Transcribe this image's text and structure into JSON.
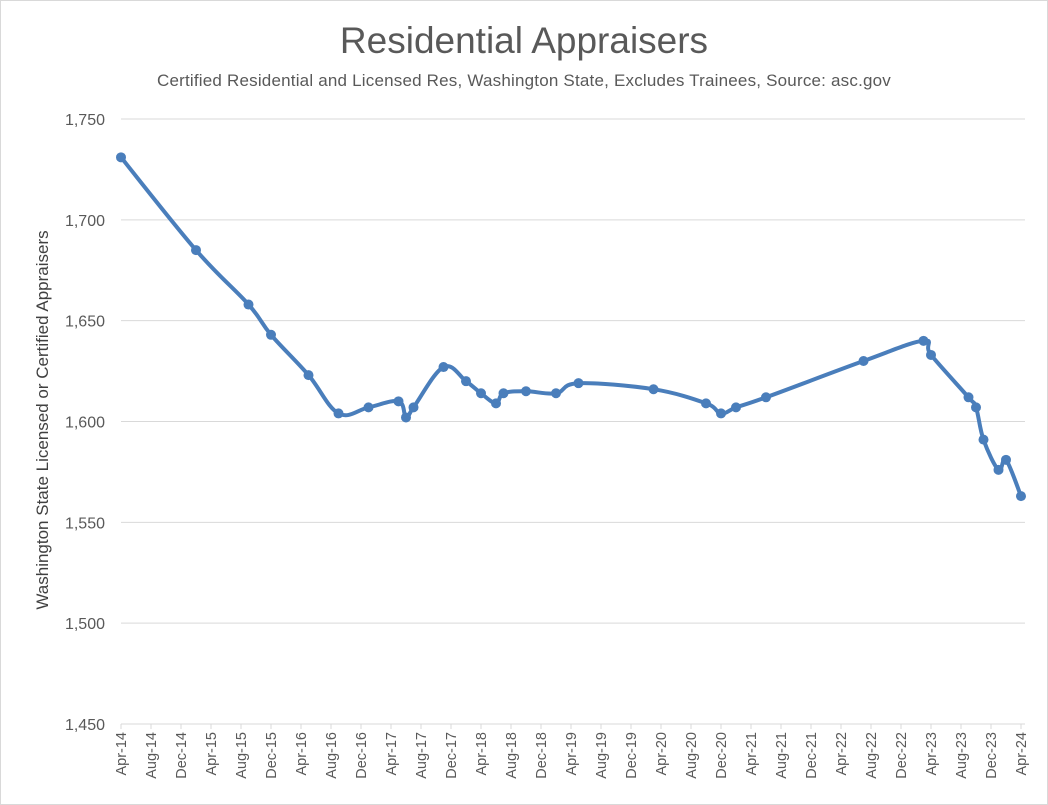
{
  "chart_data": {
    "type": "line",
    "title": "Residential Appraisers",
    "subtitle": "Certified Residential and Licensed Res, Washington State, Excludes Trainees, Source: asc.gov",
    "xlabel": "",
    "ylabel": "Washington State Licensed or Certified  Appraisers",
    "ylim": [
      1450,
      1750
    ],
    "yticks": [
      1450,
      1500,
      1550,
      1600,
      1650,
      1700,
      1750
    ],
    "ytick_labels": [
      "1,450",
      "1,500",
      "1,550",
      "1,600",
      "1,650",
      "1,700",
      "1,750"
    ],
    "xlim": [
      0,
      120
    ],
    "xticks": [
      0,
      4,
      8,
      12,
      16,
      20,
      24,
      28,
      32,
      36,
      40,
      44,
      48,
      52,
      56,
      60,
      64,
      68,
      72,
      76,
      80,
      84,
      88,
      92,
      96,
      100,
      104,
      108,
      112,
      116,
      120
    ],
    "xtick_labels": [
      "Apr-14",
      "Aug-14",
      "Dec-14",
      "Apr-15",
      "Aug-15",
      "Dec-15",
      "Apr-16",
      "Aug-16",
      "Dec-16",
      "Apr-17",
      "Aug-17",
      "Dec-17",
      "Apr-18",
      "Aug-18",
      "Dec-18",
      "Apr-19",
      "Aug-19",
      "Dec-19",
      "Apr-20",
      "Aug-20",
      "Dec-20",
      "Apr-21",
      "Aug-21",
      "Dec-21",
      "Apr-22",
      "Aug-22",
      "Dec-22",
      "Apr-23",
      "Aug-23",
      "Dec-23",
      "Apr-24"
    ],
    "grid": true,
    "legend": "none",
    "series": [
      {
        "name": "Residential Appraisers",
        "color": "#4a7ebb",
        "x": [
          0,
          10,
          17,
          20,
          25,
          29,
          33,
          37,
          38,
          39,
          43,
          46,
          48,
          50,
          51,
          54,
          58,
          61,
          71,
          78,
          80,
          82,
          86,
          99,
          107,
          108,
          113,
          114,
          115,
          117,
          118,
          120
        ],
        "values": [
          1731,
          1685,
          1658,
          1643,
          1623,
          1604,
          1607,
          1610,
          1602,
          1607,
          1627,
          1620,
          1614,
          1609,
          1614,
          1615,
          1614,
          1619,
          1616,
          1609,
          1604,
          1607,
          1612,
          1630,
          1640,
          1633,
          1612,
          1607,
          1591,
          1576,
          1581,
          1563
        ]
      }
    ]
  }
}
